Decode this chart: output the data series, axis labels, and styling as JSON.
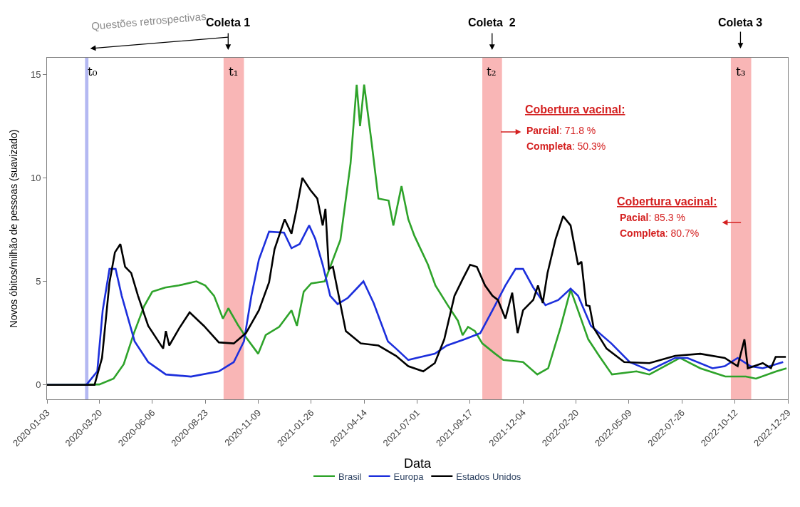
{
  "chart_data": {
    "type": "line",
    "xlabel": "Data",
    "ylabel": "Novos óbitos/milhão de pessoas (suavizado)",
    "xlim": [
      "2020-01-03",
      "2022-12-29"
    ],
    "ylim": [
      -0.7,
      15.8
    ],
    "xticks": [
      "2020-01-03",
      "2020-03-20",
      "2020-06-06",
      "2020-08-23",
      "2020-11-09",
      "2021-01-26",
      "2021-04-14",
      "2021-07-01",
      "2021-09-17",
      "2021-12-04",
      "2022-02-20",
      "2022-05-09",
      "2022-07-26",
      "2022-10-12",
      "2022-12-29"
    ],
    "yticks": [
      0,
      5,
      10,
      15
    ],
    "grid": false,
    "legend": "bottom",
    "marker": "none",
    "line_style": "solid",
    "series": [
      {
        "name": "Brasil",
        "color": "#2ea32a",
        "x": [
          "2020-01-03",
          "2020-03-20",
          "2020-04-10",
          "2020-04-25",
          "2020-05-10",
          "2020-05-25",
          "2020-06-06",
          "2020-06-25",
          "2020-07-15",
          "2020-08-10",
          "2020-08-23",
          "2020-09-05",
          "2020-09-18",
          "2020-09-26",
          "2020-10-10",
          "2020-10-22",
          "2020-11-09",
          "2020-11-20",
          "2020-12-10",
          "2020-12-28",
          "2021-01-05",
          "2021-01-15",
          "2021-01-26",
          "2021-02-15",
          "2021-03-10",
          "2021-03-25",
          "2021-04-03",
          "2021-04-08",
          "2021-04-14",
          "2021-04-25",
          "2021-05-05",
          "2021-05-20",
          "2021-05-27",
          "2021-06-08",
          "2021-06-18",
          "2021-06-27",
          "2021-07-17",
          "2021-07-28",
          "2021-08-15",
          "2021-08-30",
          "2021-09-06",
          "2021-09-14",
          "2021-09-24",
          "2021-10-05",
          "2021-10-24",
          "2021-11-05",
          "2021-12-04",
          "2021-12-25",
          "2022-01-10",
          "2022-01-28",
          "2022-02-12",
          "2022-02-24",
          "2022-03-10",
          "2022-03-26",
          "2022-04-14",
          "2022-05-20",
          "2022-06-08",
          "2022-07-23",
          "2022-08-22",
          "2022-09-28",
          "2022-10-28",
          "2022-11-12",
          "2022-12-12",
          "2022-12-27"
        ],
        "values": [
          0,
          0.02,
          0.3,
          1.0,
          2.5,
          3.8,
          4.5,
          4.7,
          4.8,
          5.0,
          4.8,
          4.3,
          3.2,
          3.7,
          2.9,
          2.3,
          1.5,
          2.4,
          2.8,
          3.6,
          2.85,
          4.5,
          4.9,
          5.0,
          7.0,
          10.7,
          14.5,
          12.5,
          14.5,
          11.7,
          9.0,
          8.9,
          7.7,
          9.6,
          8.0,
          7.2,
          5.8,
          4.8,
          3.85,
          3.1,
          2.4,
          2.8,
          2.6,
          2.0,
          1.5,
          1.2,
          1.1,
          0.5,
          0.8,
          2.75,
          4.6,
          3.5,
          2.2,
          1.4,
          0.5,
          0.65,
          0.5,
          1.3,
          0.8,
          0.4,
          0.4,
          0.3,
          0.65,
          0.8
        ]
      },
      {
        "name": "Europa",
        "color": "#1c2fdc",
        "x": [
          "2020-01-03",
          "2020-03-01",
          "2020-03-17",
          "2020-03-25",
          "2020-04-04",
          "2020-04-13",
          "2020-04-22",
          "2020-05-11",
          "2020-05-31",
          "2020-06-26",
          "2020-08-02",
          "2020-09-12",
          "2020-10-04",
          "2020-10-19",
          "2020-10-30",
          "2020-11-10",
          "2020-11-25",
          "2020-12-17",
          "2020-12-28",
          "2021-01-09",
          "2021-01-23",
          "2021-02-01",
          "2021-02-12",
          "2021-02-23",
          "2021-03-06",
          "2021-03-21",
          "2021-04-13",
          "2021-04-28",
          "2021-05-19",
          "2021-05-31",
          "2021-06-18",
          "2021-06-30",
          "2021-07-27",
          "2021-08-14",
          "2021-09-09",
          "2021-10-02",
          "2021-10-20",
          "2021-11-08",
          "2021-11-23",
          "2021-12-04",
          "2021-12-19",
          "2022-01-06",
          "2022-01-25",
          "2022-02-12",
          "2022-02-23",
          "2022-03-14",
          "2022-04-13",
          "2022-05-10",
          "2022-06-08",
          "2022-07-16",
          "2022-08-03",
          "2022-09-09",
          "2022-09-27",
          "2022-10-16",
          "2022-11-04",
          "2022-11-22",
          "2022-12-22"
        ],
        "values": [
          0,
          0,
          0.65,
          3.6,
          5.6,
          5.6,
          4.3,
          2.1,
          1.1,
          0.5,
          0.4,
          0.65,
          1.1,
          2.1,
          4.3,
          6.05,
          7.4,
          7.35,
          6.6,
          6.8,
          7.7,
          7.05,
          5.8,
          4.3,
          3.9,
          4.2,
          5.0,
          3.95,
          2.1,
          1.75,
          1.2,
          1.3,
          1.5,
          1.9,
          2.2,
          2.5,
          3.6,
          4.8,
          5.6,
          5.6,
          4.7,
          3.85,
          4.1,
          4.65,
          4.3,
          2.85,
          2.0,
          1.1,
          0.7,
          1.3,
          1.3,
          0.8,
          0.9,
          1.3,
          0.9,
          0.8,
          1.1
        ]
      },
      {
        "name": "Estados Unidos",
        "color": "#000000",
        "x": [
          "2020-01-03",
          "2020-03-13",
          "2020-03-24",
          "2020-04-04",
          "2020-04-12",
          "2020-04-20",
          "2020-04-27",
          "2020-05-06",
          "2020-05-16",
          "2020-05-31",
          "2020-06-22",
          "2020-06-26",
          "2020-07-01",
          "2020-07-16",
          "2020-07-31",
          "2020-08-21",
          "2020-09-12",
          "2020-10-04",
          "2020-10-22",
          "2020-11-10",
          "2020-11-25",
          "2020-12-03",
          "2020-12-18",
          "2020-12-28",
          "2021-01-04",
          "2021-01-13",
          "2021-01-25",
          "2021-02-04",
          "2021-02-12",
          "2021-02-16",
          "2021-02-21",
          "2021-02-27",
          "2021-03-18",
          "2021-04-09",
          "2021-05-05",
          "2021-05-31",
          "2021-06-18",
          "2021-07-10",
          "2021-07-27",
          "2021-08-10",
          "2021-08-25",
          "2021-09-06",
          "2021-09-17",
          "2021-09-27",
          "2021-10-09",
          "2021-10-20",
          "2021-10-28",
          "2021-11-08",
          "2021-11-18",
          "2021-11-26",
          "2021-12-04",
          "2021-12-19",
          "2021-12-26",
          "2022-01-02",
          "2022-01-09",
          "2022-01-21",
          "2022-02-01",
          "2022-02-12",
          "2022-02-23",
          "2022-02-28",
          "2022-03-07",
          "2022-03-12",
          "2022-03-18",
          "2022-04-06",
          "2022-05-02",
          "2022-06-08",
          "2022-07-16",
          "2022-08-22",
          "2022-09-27",
          "2022-10-16",
          "2022-10-26",
          "2022-10-31",
          "2022-11-22",
          "2022-12-04",
          "2022-12-11",
          "2022-12-26"
        ],
        "values": [
          0,
          0,
          1.3,
          4.95,
          6.4,
          6.8,
          5.7,
          5.4,
          4.3,
          2.85,
          1.75,
          2.6,
          1.9,
          2.75,
          3.5,
          2.85,
          2.05,
          2.0,
          2.5,
          3.6,
          4.95,
          6.55,
          8.0,
          7.3,
          8.4,
          10.0,
          9.4,
          9.0,
          7.7,
          8.5,
          5.6,
          5.7,
          2.6,
          2.0,
          1.9,
          1.4,
          0.9,
          0.65,
          1.05,
          2.2,
          4.3,
          5.1,
          5.8,
          5.7,
          4.8,
          4.3,
          4.1,
          3.2,
          4.45,
          2.5,
          3.6,
          4.1,
          4.8,
          3.95,
          5.4,
          7.05,
          8.15,
          7.7,
          5.8,
          5.95,
          3.85,
          3.8,
          2.75,
          1.75,
          1.1,
          1.05,
          1.4,
          1.5,
          1.3,
          0.9,
          2.2,
          0.8,
          1.05,
          0.8,
          1.35,
          1.35
        ]
      }
    ],
    "bands": [
      {
        "axis": "x",
        "from": "2020-02-28",
        "to": "2020-03-04",
        "label": "t₀",
        "color": "#b4b8f2"
      },
      {
        "axis": "x",
        "from": "2020-09-19",
        "to": "2020-10-19",
        "label": "t₁",
        "color": "#f9b6b6"
      },
      {
        "axis": "x",
        "from": "2021-10-05",
        "to": "2021-11-03",
        "label": "t₂",
        "color": "#f9b6b6"
      },
      {
        "axis": "x",
        "from": "2022-10-06",
        "to": "2022-11-05",
        "label": "t₃",
        "color": "#f9b6b6"
      }
    ],
    "annotations": [
      "Questões retrospectivas",
      "Coleta 1",
      "Coleta  2",
      "Coleta 3",
      "Cobertura vacinal:",
      "Parcial: 71.8 %",
      "Completa: 50.3%",
      "Cobertura vacinal:",
      "Pacial: 85.3 %",
      "Completa: 80.7%"
    ]
  }
}
